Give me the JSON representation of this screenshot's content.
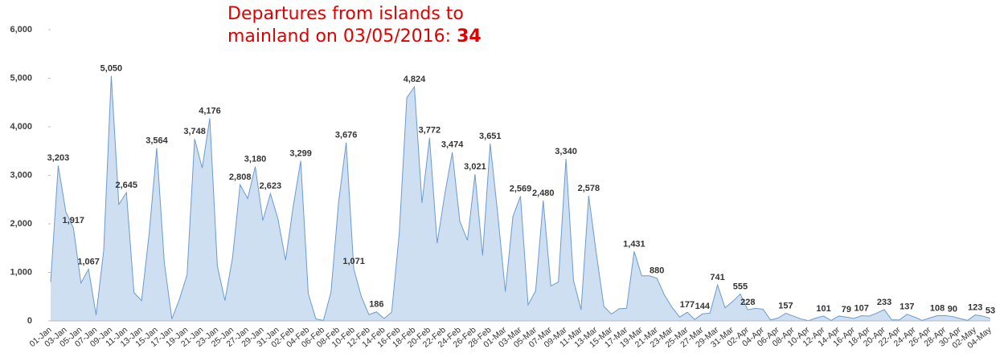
{
  "chart_data": {
    "type": "area",
    "title": "Departures from islands to mainland on 03/05/2016:",
    "title_value": "34",
    "title_color": "#e00000",
    "color": "#cddff1",
    "line_color": "#6a9bd1",
    "grid": false,
    "categories": [
      "01-Jan",
      null,
      "03-Jan",
      null,
      "05-Jan",
      null,
      "07-Jan",
      null,
      "09-Jan",
      null,
      "11-Jan",
      null,
      "13-Jan",
      null,
      "15-Jan",
      null,
      "17-Jan",
      null,
      "19-Jan",
      null,
      "21-Jan",
      null,
      "23-Jan",
      null,
      "25-Jan",
      null,
      "27-Jan",
      null,
      "29-Jan",
      null,
      "31-Jan",
      null,
      "02-Feb",
      null,
      "04-Feb",
      null,
      "06-Feb",
      null,
      "08-Feb",
      null,
      "10-Feb",
      null,
      "12-Feb",
      null,
      "14-Feb",
      null,
      "16-Feb",
      null,
      "18-Feb",
      null,
      "20-Feb",
      null,
      "22-Feb",
      null,
      "24-Feb",
      null,
      "26-Feb",
      null,
      "28-Feb",
      null,
      "01-Mar",
      null,
      "03-Mar",
      null,
      "05-Mar",
      null,
      "07-Mar",
      null,
      "09-Mar",
      null,
      "11-Mar",
      null,
      "13-Mar",
      null,
      "15-Mar",
      null,
      "17-Mar",
      null,
      "19-Mar",
      null,
      "21-Mar",
      null,
      "23-Mar",
      null,
      "25-Mar",
      null,
      "27-Mar",
      null,
      "29-Mar",
      null,
      "31-Mar",
      null,
      "02-Apr",
      null,
      "04-Apr",
      null,
      "06-Apr",
      null,
      "08-Apr",
      null,
      "10-Apr",
      null,
      "12-Apr",
      null,
      "14-Apr",
      null,
      "16-Apr",
      null,
      "18-Apr",
      null,
      "20-Apr",
      null,
      "22-Apr",
      null,
      "24-Apr",
      null,
      "26-Apr",
      null,
      "28-Apr",
      null,
      "30-Apr",
      null,
      "02-May",
      null,
      "04-May"
    ],
    "values": [
      800,
      3203,
      2250,
      1917,
      780,
      1067,
      120,
      1450,
      5050,
      2400,
      2645,
      580,
      420,
      1800,
      3564,
      1200,
      40,
      450,
      950,
      3748,
      3150,
      4176,
      1130,
      420,
      1300,
      2808,
      2520,
      3180,
      2070,
      2623,
      2100,
      1250,
      2350,
      3299,
      560,
      40,
      10,
      600,
      2450,
      3676,
      1071,
      500,
      130,
      186,
      50,
      180,
      1800,
      4600,
      4824,
      2430,
      3772,
      1600,
      2600,
      3474,
      2050,
      1660,
      3021,
      1350,
      3651,
      2200,
      600,
      2150,
      2569,
      330,
      620,
      2480,
      720,
      800,
      3340,
      830,
      230,
      2578,
      1400,
      300,
      140,
      250,
      260,
      1431,
      930,
      930,
      880,
      530,
      280,
      80,
      177,
      30,
      144,
      160,
      741,
      270,
      400,
      555,
      228,
      260,
      240,
      20,
      60,
      157,
      100,
      40,
      5,
      60,
      101,
      10,
      100,
      79,
      50,
      107,
      100,
      160,
      233,
      20,
      20,
      137,
      80,
      10,
      60,
      108,
      110,
      90,
      50,
      10,
      123,
      100,
      53
    ],
    "value_labels": [
      null,
      "3,203",
      null,
      "1,917",
      null,
      "1,067",
      null,
      null,
      "5,050",
      null,
      "2,645",
      null,
      null,
      null,
      "3,564",
      null,
      null,
      null,
      null,
      "3,748",
      null,
      "4,176",
      null,
      null,
      null,
      "2,808",
      null,
      "3,180",
      null,
      "2,623",
      null,
      null,
      null,
      "3,299",
      null,
      null,
      null,
      null,
      null,
      "3,676",
      "1,071",
      null,
      null,
      "186",
      null,
      null,
      null,
      null,
      "4,824",
      null,
      "3,772",
      null,
      null,
      "3,474",
      null,
      null,
      "3,021",
      null,
      "3,651",
      null,
      null,
      null,
      "2,569",
      null,
      null,
      "2,480",
      null,
      null,
      "3,340",
      null,
      null,
      "2,578",
      null,
      null,
      null,
      null,
      null,
      "1,431",
      null,
      null,
      "880",
      null,
      null,
      null,
      "177",
      null,
      "144",
      null,
      "741",
      null,
      null,
      "555",
      "228",
      null,
      null,
      null,
      null,
      "157",
      null,
      null,
      null,
      null,
      "101",
      null,
      null,
      "79",
      null,
      "107",
      null,
      null,
      "233",
      null,
      null,
      "137",
      null,
      null,
      null,
      "108",
      null,
      "90",
      null,
      null,
      "123",
      null,
      "53"
    ],
    "ylim": [
      0,
      6000
    ],
    "yticks": [
      0,
      {
        "value": 1000,
        "label": "1,000"
      },
      {
        "value": 2000,
        "label": "2,000"
      },
      {
        "value": 3000,
        "label": "3,000"
      },
      {
        "value": 4000,
        "label": "4,000"
      },
      {
        "value": 5000,
        "label": "5,000"
      },
      {
        "value": 6000,
        "label": "6,000"
      }
    ]
  }
}
